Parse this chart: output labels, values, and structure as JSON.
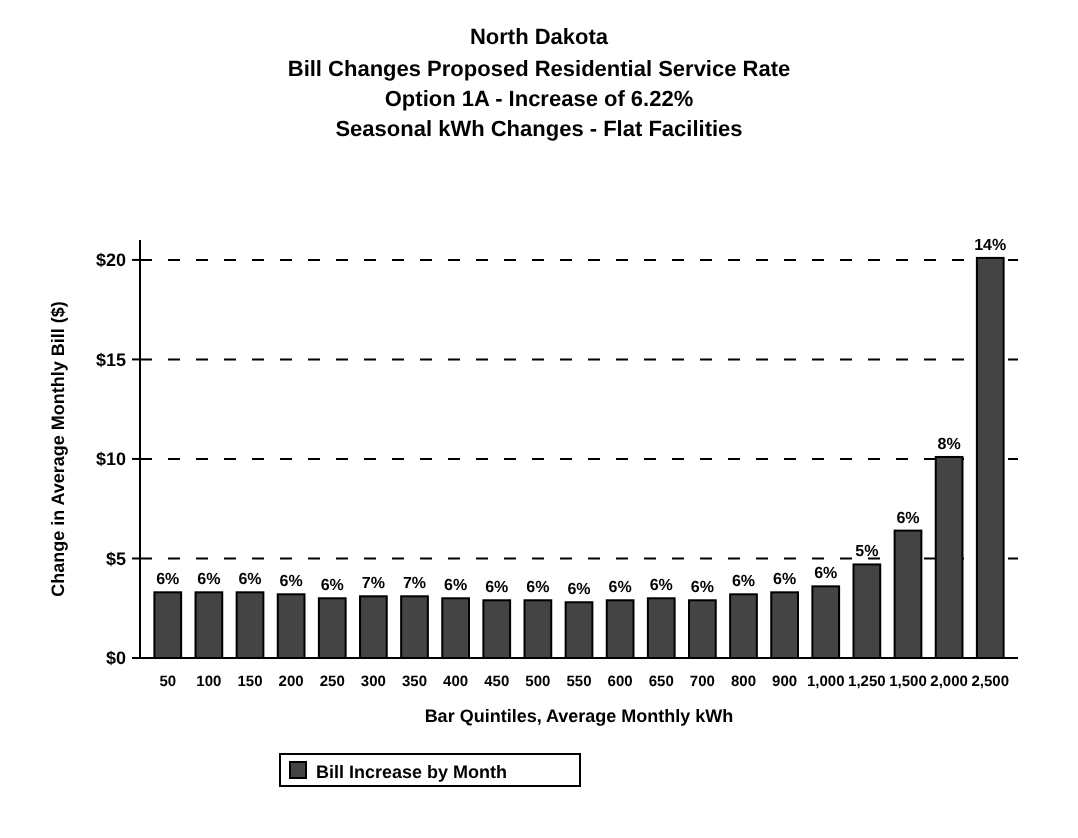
{
  "chart_data": {
    "type": "bar",
    "title": "North Dakota",
    "subtitle": "Bill Changes Proposed Residential Service Rate\nOption 1A - Increase of 6.22%\nSeasonal kWh Changes - Flat Facilities",
    "xlabel": "Bar Quintiles, Average Monthly kWh",
    "ylabel": "Change in Average Monthly Bill ($)",
    "categories": [
      "50",
      "100",
      "150",
      "200",
      "250",
      "300",
      "350",
      "400",
      "450",
      "500",
      "550",
      "600",
      "650",
      "700",
      "800",
      "900",
      "1,000",
      "1,250",
      "1,500",
      "2,000",
      "2,500"
    ],
    "series": [
      {
        "name": "Bill Increase by Month",
        "color": "#444444",
        "values": [
          3.3,
          3.3,
          3.3,
          3.2,
          3.0,
          3.1,
          3.1,
          3.0,
          2.9,
          2.9,
          2.8,
          2.9,
          3.0,
          2.9,
          3.2,
          3.3,
          3.6,
          4.7,
          6.4,
          10.1,
          20.1
        ]
      }
    ],
    "annotations": [
      {
        "text": "6%",
        "x": "50",
        "y": 3.3
      },
      {
        "text": "6%",
        "x": "100",
        "y": 3.3
      },
      {
        "text": "6%",
        "x": "150",
        "y": 3.3
      },
      {
        "text": "6%",
        "x": "200",
        "y": 3.2
      },
      {
        "text": "6%",
        "x": "250",
        "y": 3.0
      },
      {
        "text": "7%",
        "x": "300",
        "y": 3.1
      },
      {
        "text": "7%",
        "x": "350",
        "y": 3.1
      },
      {
        "text": "6%",
        "x": "400",
        "y": 3.0
      },
      {
        "text": "6%",
        "x": "450",
        "y": 2.9
      },
      {
        "text": "6%",
        "x": "500",
        "y": 2.9
      },
      {
        "text": "6%",
        "x": "550",
        "y": 2.8
      },
      {
        "text": "6%",
        "x": "600",
        "y": 2.9
      },
      {
        "text": "6%",
        "x": "650",
        "y": 3.0
      },
      {
        "text": "6%",
        "x": "700",
        "y": 2.9
      },
      {
        "text": "6%",
        "x": "800",
        "y": 3.2
      },
      {
        "text": "6%",
        "x": "900",
        "y": 3.3
      },
      {
        "text": "6%",
        "x": "1,000",
        "y": 3.6
      },
      {
        "text": "5%",
        "x": "1,250",
        "y": 4.7
      },
      {
        "text": "6%",
        "x": "1,500",
        "y": 6.4
      },
      {
        "text": "8%",
        "x": "2,000",
        "y": 10.1
      },
      {
        "text": "14%",
        "x": "2,500",
        "y": 20.1
      }
    ],
    "ylim": [
      0,
      21
    ],
    "yticks": [
      {
        "value": 0,
        "label": "$0"
      },
      {
        "value": 5,
        "label": "$5"
      },
      {
        "value": 10,
        "label": "$10"
      },
      {
        "value": 15,
        "label": "$15"
      },
      {
        "value": 20,
        "label": "$20"
      }
    ],
    "grid": "y",
    "legend": "bottom"
  }
}
